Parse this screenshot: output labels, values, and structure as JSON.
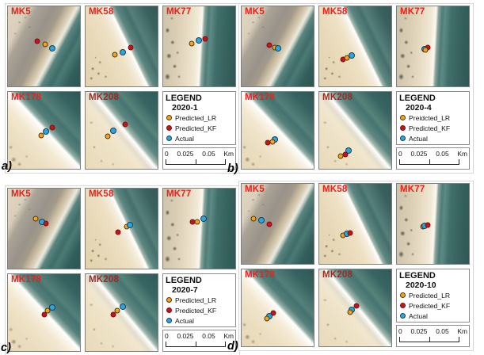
{
  "colors": {
    "predicted_lr": "#f2a21d",
    "predicted_kf": "#c3161c",
    "actual": "#2aa7de",
    "label_red": "#e8211c",
    "label_dark_red": "#9c2a22",
    "sea_teal": "#3e6c68",
    "sand": "#e6d7b6"
  },
  "groups": [
    {
      "id": "a",
      "caption": "a)",
      "legend": {
        "title": "LEGEND",
        "subtitle": "2020-1",
        "entries": [
          {
            "series": "predicted_lr",
            "label": "Predicted_LR"
          },
          {
            "series": "predicted_kf",
            "label": "Predicted_KF"
          },
          {
            "series": "actual",
            "label": "Actual"
          }
        ],
        "scale": {
          "ticks": [
            "0",
            "0.025",
            "0.05"
          ],
          "unit": "Km"
        }
      },
      "panels": [
        {
          "label": "MK5",
          "bg": "mk5",
          "dark_label": false,
          "markers": [
            {
              "series": "predicted_kf",
              "x": 41,
              "y": 44
            },
            {
              "series": "predicted_lr",
              "x": 52,
              "y": 48
            },
            {
              "series": "actual",
              "x": 61,
              "y": 52
            }
          ]
        },
        {
          "label": "MK58",
          "bg": "mk58",
          "dark_label": false,
          "markers": [
            {
              "series": "predicted_lr",
              "x": 41,
              "y": 60
            },
            {
              "series": "actual",
              "x": 52,
              "y": 57
            },
            {
              "series": "predicted_kf",
              "x": 63,
              "y": 51
            }
          ]
        },
        {
          "label": "MK77",
          "bg": "mk77",
          "dark_label": false,
          "markers": [
            {
              "series": "predicted_lr",
              "x": 40,
              "y": 47
            },
            {
              "series": "actual",
              "x": 49,
              "y": 43
            },
            {
              "series": "predicted_kf",
              "x": 58,
              "y": 41
            }
          ]
        },
        {
          "label": "MK178",
          "bg": "mk178",
          "dark_label": false,
          "markers": [
            {
              "series": "predicted_kf",
              "x": 61,
              "y": 46
            },
            {
              "series": "actual",
              "x": 53,
              "y": 52
            },
            {
              "series": "predicted_lr",
              "x": 46,
              "y": 57
            }
          ]
        },
        {
          "label": "MK208",
          "bg": "mk208",
          "dark_label": true,
          "markers": [
            {
              "series": "predicted_kf",
              "x": 55,
              "y": 42
            },
            {
              "series": "actual",
              "x": 38,
              "y": 50
            },
            {
              "series": "predicted_lr",
              "x": 31,
              "y": 58
            }
          ]
        }
      ]
    },
    {
      "id": "b",
      "caption": "b)",
      "legend": {
        "title": "LEGEND",
        "subtitle": "2020-4",
        "entries": [
          {
            "series": "predicted_lr",
            "label": "Preidcted_LR"
          },
          {
            "series": "predicted_kf",
            "label": "Predicted_KF"
          },
          {
            "series": "actual",
            "label": "Actual"
          }
        ],
        "scale": {
          "ticks": [
            "0",
            "0.025",
            "0.05"
          ],
          "unit": "Km"
        }
      },
      "panels": [
        {
          "label": "MK5",
          "bg": "mk5",
          "dark_label": false,
          "markers": [
            {
              "series": "predicted_kf",
              "x": 38,
              "y": 49
            },
            {
              "series": "predicted_lr",
              "x": 46,
              "y": 51
            },
            {
              "series": "actual",
              "x": 51,
              "y": 52
            }
          ]
        },
        {
          "label": "MK58",
          "bg": "mk58",
          "dark_label": false,
          "markers": [
            {
              "series": "predicted_kf",
              "x": 33,
              "y": 66
            },
            {
              "series": "predicted_lr",
              "x": 38,
              "y": 64
            },
            {
              "series": "actual",
              "x": 45,
              "y": 61
            }
          ]
        },
        {
          "label": "MK77",
          "bg": "mk77",
          "dark_label": false,
          "markers": [
            {
              "series": "actual",
              "x": 38,
              "y": 53
            },
            {
              "series": "predicted_kf",
              "x": 43,
              "y": 51
            },
            {
              "series": "predicted_lr",
              "x": 40,
              "y": 54
            }
          ]
        },
        {
          "label": "MK178",
          "bg": "mk178",
          "dark_label": false,
          "markers": [
            {
              "series": "predicted_kf",
              "x": 36,
              "y": 66
            },
            {
              "series": "actual",
              "x": 46,
              "y": 62
            },
            {
              "series": "predicted_lr",
              "x": 43,
              "y": 65
            }
          ]
        },
        {
          "label": "MK208",
          "bg": "mk208",
          "dark_label": true,
          "markers": [
            {
              "series": "actual",
              "x": 41,
              "y": 76
            },
            {
              "series": "predicted_kf",
              "x": 36,
              "y": 81
            },
            {
              "series": "predicted_lr",
              "x": 30,
              "y": 84
            }
          ]
        }
      ]
    },
    {
      "id": "c",
      "caption": "c)",
      "legend": {
        "title": "LEGEND",
        "subtitle": "2020-7",
        "entries": [
          {
            "series": "predicted_lr",
            "label": "Predicted_LR"
          },
          {
            "series": "predicted_kf",
            "label": "Predicted_KF"
          },
          {
            "series": "actual",
            "label": "Actual"
          }
        ],
        "scale": {
          "ticks": [
            "0",
            "0.025",
            "0.05"
          ],
          "unit": "Km"
        }
      },
      "panels": [
        {
          "label": "MK5",
          "bg": "mk5",
          "dark_label": false,
          "markers": [
            {
              "series": "predicted_lr",
              "x": 38,
              "y": 38
            },
            {
              "series": "actual",
              "x": 47,
              "y": 42
            },
            {
              "series": "predicted_kf",
              "x": 53,
              "y": 44
            }
          ]
        },
        {
          "label": "MK58",
          "bg": "mk58",
          "dark_label": false,
          "markers": [
            {
              "series": "predicted_kf",
              "x": 45,
              "y": 54
            },
            {
              "series": "predicted_lr",
              "x": 57,
              "y": 48
            },
            {
              "series": "actual",
              "x": 61,
              "y": 46
            }
          ]
        },
        {
          "label": "MK77",
          "bg": "mk77",
          "dark_label": false,
          "markers": [
            {
              "series": "predicted_kf",
              "x": 41,
              "y": 42
            },
            {
              "series": "predicted_lr",
              "x": 47,
              "y": 42
            },
            {
              "series": "actual",
              "x": 56,
              "y": 38
            }
          ]
        },
        {
          "label": "MK178",
          "bg": "mk178",
          "dark_label": false,
          "markers": [
            {
              "series": "actual",
              "x": 61,
              "y": 43
            },
            {
              "series": "predicted_lr",
              "x": 55,
              "y": 47
            },
            {
              "series": "predicted_kf",
              "x": 50,
              "y": 53
            }
          ]
        },
        {
          "label": "MK208",
          "bg": "mk208",
          "dark_label": true,
          "markers": [
            {
              "series": "actual",
              "x": 52,
              "y": 42
            },
            {
              "series": "predicted_lr",
              "x": 44,
              "y": 47
            },
            {
              "series": "predicted_kf",
              "x": 38,
              "y": 53
            }
          ]
        }
      ]
    },
    {
      "id": "d",
      "caption": "d)",
      "legend": {
        "title": "LEGEND",
        "subtitle": "2020-10",
        "entries": [
          {
            "series": "predicted_lr",
            "label": "Predicted_LR"
          },
          {
            "series": "predicted_kf",
            "label": "Predicted_KF"
          },
          {
            "series": "actual",
            "label": "Actual"
          }
        ],
        "scale": {
          "ticks": [
            "0",
            "0.025",
            "0.05"
          ],
          "unit": "Km"
        }
      },
      "panels": [
        {
          "label": "MK5",
          "bg": "mk5",
          "dark_label": false,
          "markers": [
            {
              "series": "predicted_lr",
              "x": 17,
              "y": 44
            },
            {
              "series": "actual",
              "x": 28,
              "y": 46
            },
            {
              "series": "predicted_kf",
              "x": 38,
              "y": 50
            }
          ]
        },
        {
          "label": "MK58",
          "bg": "mk58",
          "dark_label": false,
          "markers": [
            {
              "series": "predicted_lr",
              "x": 33,
              "y": 64
            },
            {
              "series": "actual",
              "x": 38,
              "y": 62
            },
            {
              "series": "predicted_kf",
              "x": 43,
              "y": 61
            }
          ]
        },
        {
          "label": "MK77",
          "bg": "mk77",
          "dark_label": false,
          "markers": [
            {
              "series": "predicted_lr",
              "x": 36,
              "y": 53
            },
            {
              "series": "actual",
              "x": 39,
              "y": 52
            },
            {
              "series": "predicted_kf",
              "x": 43,
              "y": 51
            }
          ]
        },
        {
          "label": "MK178",
          "bg": "mk178",
          "dark_label": false,
          "markers": [
            {
              "series": "predicted_kf",
              "x": 44,
              "y": 57
            },
            {
              "series": "actual",
              "x": 38,
              "y": 61
            },
            {
              "series": "predicted_lr",
              "x": 35,
              "y": 64
            }
          ]
        },
        {
          "label": "MK208",
          "bg": "mk208",
          "dark_label": true,
          "markers": [
            {
              "series": "predicted_kf",
              "x": 52,
              "y": 47
            },
            {
              "series": "actual",
              "x": 45,
              "y": 53
            },
            {
              "series": "predicted_lr",
              "x": 43,
              "y": 56
            }
          ]
        }
      ]
    }
  ]
}
